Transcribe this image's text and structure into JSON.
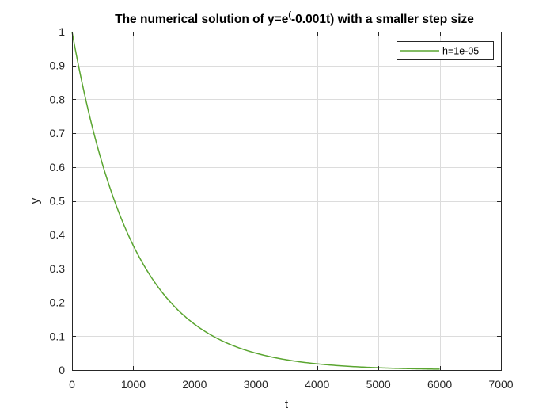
{
  "chart_data": {
    "type": "line",
    "title": "The numerical solution of  y=e^(-0.001t) with a smaller step size",
    "title_main": "The numerical solution of  y=e",
    "title_super": "(",
    "title_tail": "-0.001t) with a smaller step size",
    "xlabel": "t",
    "ylabel": "y",
    "xlim": [
      0,
      7000
    ],
    "ylim": [
      0,
      1
    ],
    "xticks": [
      0,
      1000,
      2000,
      3000,
      4000,
      5000,
      6000,
      7000
    ],
    "yticks": [
      0,
      0.1,
      0.2,
      0.3,
      0.4,
      0.5,
      0.6,
      0.7,
      0.8,
      0.9,
      1
    ],
    "grid": true,
    "legend_position": "top-right",
    "series": [
      {
        "name": "h=1e-05",
        "color": "#5aa530",
        "x": [
          0,
          250,
          500,
          750,
          1000,
          1250,
          1500,
          1750,
          2000,
          2250,
          2500,
          2750,
          3000,
          3250,
          3500,
          3750,
          4000,
          4250,
          4500,
          4750,
          5000,
          5250,
          5500,
          5750,
          6000
        ],
        "y": [
          1.0,
          0.7788,
          0.6065,
          0.4724,
          0.3679,
          0.2865,
          0.2231,
          0.1738,
          0.1353,
          0.1054,
          0.0821,
          0.0639,
          0.0498,
          0.0388,
          0.0302,
          0.0235,
          0.0183,
          0.0143,
          0.0111,
          0.0087,
          0.0067,
          0.0052,
          0.0041,
          0.0032,
          0.0025
        ]
      }
    ]
  }
}
